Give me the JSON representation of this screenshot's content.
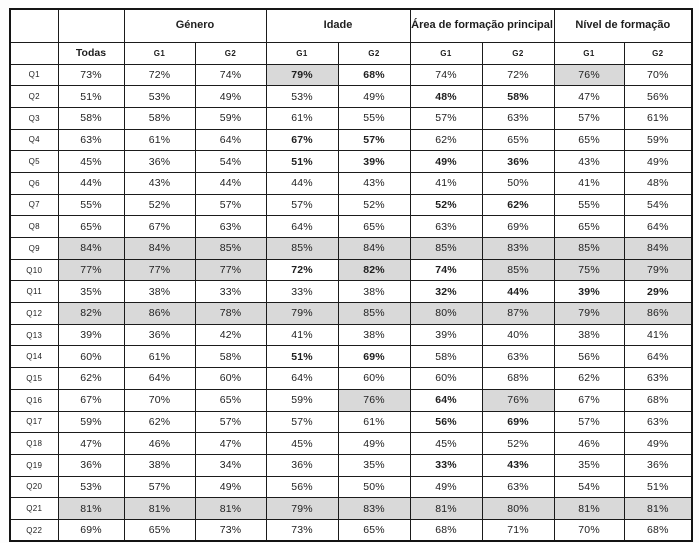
{
  "table": {
    "corner": "",
    "todas_label": "Todas",
    "groups": [
      {
        "label": "Género"
      },
      {
        "label": "Idade"
      },
      {
        "label": "Área de formação principal"
      },
      {
        "label": "Nível de formação"
      }
    ],
    "subheaders": [
      "G1",
      "G2"
    ],
    "columns": [
      "Todas",
      "Género G1",
      "Género G2",
      "Idade G1",
      "Idade G2",
      "Área de formação principal G1",
      "Área de formação principal G2",
      "Nível de formação G1",
      "Nível de formação G2"
    ],
    "colors": {
      "shaded_cell": "#d9d9d9",
      "border": "#1b1b1b",
      "text": "#1e1e1e"
    },
    "rows": [
      {
        "label": "Q1",
        "cells": [
          {
            "v": "73%"
          },
          {
            "v": "72%"
          },
          {
            "v": "74%"
          },
          {
            "v": "79%",
            "bold": true,
            "shaded": true
          },
          {
            "v": "68%",
            "bold": true
          },
          {
            "v": "74%"
          },
          {
            "v": "72%"
          },
          {
            "v": "76%",
            "shaded": true
          },
          {
            "v": "70%"
          }
        ]
      },
      {
        "label": "Q2",
        "cells": [
          {
            "v": "51%"
          },
          {
            "v": "53%"
          },
          {
            "v": "49%"
          },
          {
            "v": "53%"
          },
          {
            "v": "49%"
          },
          {
            "v": "48%",
            "bold": true
          },
          {
            "v": "58%",
            "bold": true
          },
          {
            "v": "47%"
          },
          {
            "v": "56%"
          }
        ]
      },
      {
        "label": "Q3",
        "cells": [
          {
            "v": "58%"
          },
          {
            "v": "58%"
          },
          {
            "v": "59%"
          },
          {
            "v": "61%"
          },
          {
            "v": "55%"
          },
          {
            "v": "57%"
          },
          {
            "v": "63%"
          },
          {
            "v": "57%"
          },
          {
            "v": "61%"
          }
        ]
      },
      {
        "label": "Q4",
        "cells": [
          {
            "v": "63%"
          },
          {
            "v": "61%"
          },
          {
            "v": "64%"
          },
          {
            "v": "67%",
            "bold": true
          },
          {
            "v": "57%",
            "bold": true
          },
          {
            "v": "62%"
          },
          {
            "v": "65%"
          },
          {
            "v": "65%"
          },
          {
            "v": "59%"
          }
        ]
      },
      {
        "label": "Q5",
        "cells": [
          {
            "v": "45%"
          },
          {
            "v": "36%"
          },
          {
            "v": "54%"
          },
          {
            "v": "51%",
            "bold": true
          },
          {
            "v": "39%",
            "bold": true
          },
          {
            "v": "49%",
            "bold": true
          },
          {
            "v": "36%",
            "bold": true
          },
          {
            "v": "43%"
          },
          {
            "v": "49%"
          }
        ]
      },
      {
        "label": "Q6",
        "cells": [
          {
            "v": "44%"
          },
          {
            "v": "43%"
          },
          {
            "v": "44%"
          },
          {
            "v": "44%"
          },
          {
            "v": "43%"
          },
          {
            "v": "41%"
          },
          {
            "v": "50%"
          },
          {
            "v": "41%"
          },
          {
            "v": "48%"
          }
        ]
      },
      {
        "label": "Q7",
        "cells": [
          {
            "v": "55%"
          },
          {
            "v": "52%"
          },
          {
            "v": "57%"
          },
          {
            "v": "57%"
          },
          {
            "v": "52%"
          },
          {
            "v": "52%",
            "bold": true
          },
          {
            "v": "62%",
            "bold": true
          },
          {
            "v": "55%"
          },
          {
            "v": "54%"
          }
        ]
      },
      {
        "label": "Q8",
        "cells": [
          {
            "v": "65%"
          },
          {
            "v": "67%"
          },
          {
            "v": "63%"
          },
          {
            "v": "64%"
          },
          {
            "v": "65%"
          },
          {
            "v": "63%"
          },
          {
            "v": "69%"
          },
          {
            "v": "65%"
          },
          {
            "v": "64%"
          }
        ]
      },
      {
        "label": "Q9",
        "cells": [
          {
            "v": "84%",
            "shaded": true
          },
          {
            "v": "84%",
            "shaded": true
          },
          {
            "v": "85%",
            "shaded": true
          },
          {
            "v": "85%",
            "shaded": true
          },
          {
            "v": "84%",
            "shaded": true
          },
          {
            "v": "85%",
            "shaded": true
          },
          {
            "v": "83%",
            "shaded": true
          },
          {
            "v": "85%",
            "shaded": true
          },
          {
            "v": "84%",
            "shaded": true
          }
        ]
      },
      {
        "label": "Q10",
        "cells": [
          {
            "v": "77%",
            "shaded": true
          },
          {
            "v": "77%",
            "shaded": true
          },
          {
            "v": "77%",
            "shaded": true
          },
          {
            "v": "72%",
            "bold": true
          },
          {
            "v": "82%",
            "bold": true,
            "shaded": true
          },
          {
            "v": "74%",
            "bold": true
          },
          {
            "v": "85%",
            "shaded": true
          },
          {
            "v": "75%",
            "shaded": true
          },
          {
            "v": "79%",
            "shaded": true
          }
        ]
      },
      {
        "label": "Q11",
        "cells": [
          {
            "v": "35%"
          },
          {
            "v": "38%"
          },
          {
            "v": "33%"
          },
          {
            "v": "33%"
          },
          {
            "v": "38%"
          },
          {
            "v": "32%",
            "bold": true
          },
          {
            "v": "44%",
            "bold": true
          },
          {
            "v": "39%",
            "bold": true
          },
          {
            "v": "29%",
            "bold": true
          }
        ]
      },
      {
        "label": "Q12",
        "cells": [
          {
            "v": "82%",
            "shaded": true
          },
          {
            "v": "86%",
            "shaded": true
          },
          {
            "v": "78%",
            "shaded": true
          },
          {
            "v": "79%",
            "shaded": true
          },
          {
            "v": "85%",
            "shaded": true
          },
          {
            "v": "80%",
            "shaded": true
          },
          {
            "v": "87%",
            "shaded": true
          },
          {
            "v": "79%",
            "shaded": true
          },
          {
            "v": "86%",
            "shaded": true
          }
        ]
      },
      {
        "label": "Q13",
        "cells": [
          {
            "v": "39%"
          },
          {
            "v": "36%"
          },
          {
            "v": "42%"
          },
          {
            "v": "41%"
          },
          {
            "v": "38%"
          },
          {
            "v": "39%"
          },
          {
            "v": "40%"
          },
          {
            "v": "38%"
          },
          {
            "v": "41%"
          }
        ]
      },
      {
        "label": "Q14",
        "cells": [
          {
            "v": "60%"
          },
          {
            "v": "61%"
          },
          {
            "v": "58%"
          },
          {
            "v": "51%",
            "bold": true
          },
          {
            "v": "69%",
            "bold": true
          },
          {
            "v": "58%"
          },
          {
            "v": "63%"
          },
          {
            "v": "56%"
          },
          {
            "v": "64%"
          }
        ]
      },
      {
        "label": "Q15",
        "cells": [
          {
            "v": "62%"
          },
          {
            "v": "64%"
          },
          {
            "v": "60%"
          },
          {
            "v": "64%"
          },
          {
            "v": "60%"
          },
          {
            "v": "60%"
          },
          {
            "v": "68%"
          },
          {
            "v": "62%"
          },
          {
            "v": "63%"
          }
        ]
      },
      {
        "label": "Q16",
        "cells": [
          {
            "v": "67%"
          },
          {
            "v": "70%"
          },
          {
            "v": "65%"
          },
          {
            "v": "59%"
          },
          {
            "v": "76%",
            "shaded": true
          },
          {
            "v": "64%",
            "bold": true
          },
          {
            "v": "76%",
            "shaded": true
          },
          {
            "v": "67%"
          },
          {
            "v": "68%"
          }
        ]
      },
      {
        "label": "Q17",
        "cells": [
          {
            "v": "59%"
          },
          {
            "v": "62%"
          },
          {
            "v": "57%"
          },
          {
            "v": "57%"
          },
          {
            "v": "61%"
          },
          {
            "v": "56%",
            "bold": true
          },
          {
            "v": "69%",
            "bold": true
          },
          {
            "v": "57%"
          },
          {
            "v": "63%"
          }
        ]
      },
      {
        "label": "Q18",
        "cells": [
          {
            "v": "47%"
          },
          {
            "v": "46%"
          },
          {
            "v": "47%"
          },
          {
            "v": "45%"
          },
          {
            "v": "49%"
          },
          {
            "v": "45%"
          },
          {
            "v": "52%"
          },
          {
            "v": "46%"
          },
          {
            "v": "49%"
          }
        ]
      },
      {
        "label": "Q19",
        "cells": [
          {
            "v": "36%"
          },
          {
            "v": "38%"
          },
          {
            "v": "34%"
          },
          {
            "v": "36%"
          },
          {
            "v": "35%"
          },
          {
            "v": "33%",
            "bold": true
          },
          {
            "v": "43%",
            "bold": true
          },
          {
            "v": "35%"
          },
          {
            "v": "36%"
          }
        ]
      },
      {
        "label": "Q20",
        "cells": [
          {
            "v": "53%"
          },
          {
            "v": "57%"
          },
          {
            "v": "49%"
          },
          {
            "v": "56%"
          },
          {
            "v": "50%"
          },
          {
            "v": "49%"
          },
          {
            "v": "63%"
          },
          {
            "v": "54%"
          },
          {
            "v": "51%"
          }
        ]
      },
      {
        "label": "Q21",
        "cells": [
          {
            "v": "81%",
            "shaded": true
          },
          {
            "v": "81%",
            "shaded": true
          },
          {
            "v": "81%",
            "shaded": true
          },
          {
            "v": "79%",
            "shaded": true
          },
          {
            "v": "83%",
            "shaded": true
          },
          {
            "v": "81%",
            "shaded": true
          },
          {
            "v": "80%",
            "shaded": true
          },
          {
            "v": "81%",
            "shaded": true
          },
          {
            "v": "81%",
            "shaded": true
          }
        ]
      },
      {
        "label": "Q22",
        "cells": [
          {
            "v": "69%"
          },
          {
            "v": "65%"
          },
          {
            "v": "73%"
          },
          {
            "v": "73%"
          },
          {
            "v": "65%"
          },
          {
            "v": "68%"
          },
          {
            "v": "71%"
          },
          {
            "v": "70%"
          },
          {
            "v": "68%"
          }
        ]
      }
    ]
  }
}
